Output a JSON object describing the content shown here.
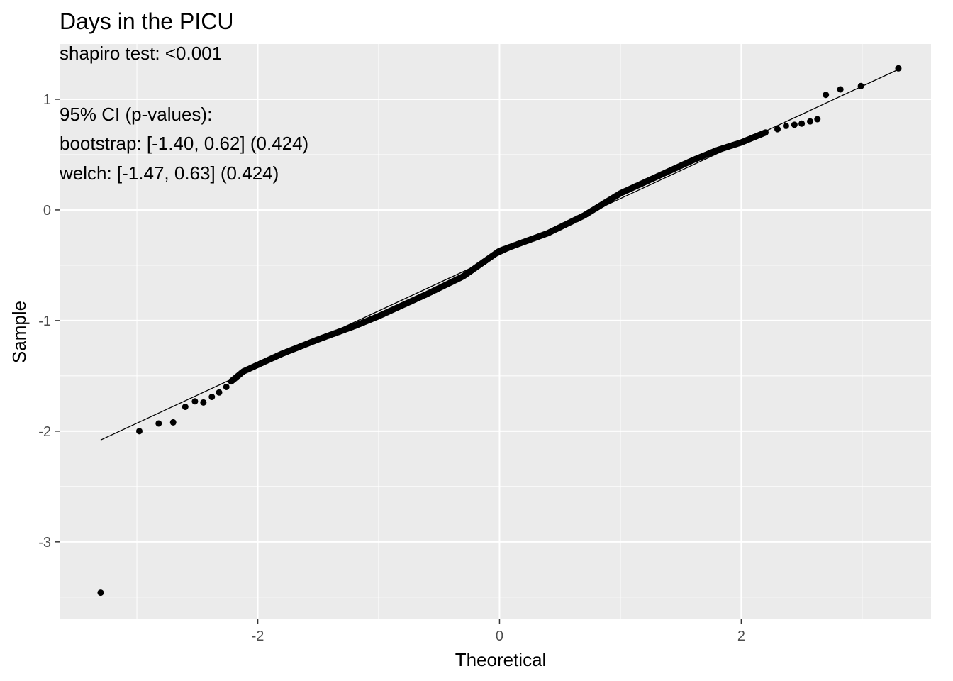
{
  "chart_data": {
    "type": "scatter",
    "title": "Days in the PICU",
    "annotations": [
      "shapiro test: <0.001",
      "",
      "95% CI (p-values):",
      "bootstrap: [-1.40, 0.62] (0.424)",
      "welch: [-1.47, 0.63] (0.424)"
    ],
    "xlabel": "Theoretical",
    "ylabel": "Sample",
    "xlim": [
      -3.64,
      3.57
    ],
    "ylim": [
      -3.7,
      1.5
    ],
    "x_ticks": [
      -2,
      0,
      2
    ],
    "x_tick_labels": [
      "-2",
      "0",
      "2"
    ],
    "y_ticks": [
      -3,
      -2,
      -1,
      0,
      1
    ],
    "y_tick_labels": [
      "-3",
      "-2",
      "-1",
      "0",
      "1"
    ],
    "grid": true,
    "reference_line": {
      "x": [
        -3.3,
        3.3
      ],
      "y": [
        -2.08,
        1.27
      ]
    },
    "outlier_points": [
      {
        "x": -3.3,
        "y": -3.46
      },
      {
        "x": -2.98,
        "y": -2.0
      },
      {
        "x": -2.82,
        "y": -1.93
      },
      {
        "x": -2.7,
        "y": -1.92
      },
      {
        "x": -2.6,
        "y": -1.78
      },
      {
        "x": -2.52,
        "y": -1.73
      },
      {
        "x": -2.45,
        "y": -1.74
      },
      {
        "x": -2.38,
        "y": -1.69
      },
      {
        "x": -2.32,
        "y": -1.65
      },
      {
        "x": -2.26,
        "y": -1.6
      },
      {
        "x": 2.3,
        "y": 0.73
      },
      {
        "x": 2.37,
        "y": 0.76
      },
      {
        "x": 2.44,
        "y": 0.77
      },
      {
        "x": 2.5,
        "y": 0.78
      },
      {
        "x": 2.57,
        "y": 0.8
      },
      {
        "x": 2.63,
        "y": 0.82
      },
      {
        "x": 2.7,
        "y": 1.04
      },
      {
        "x": 2.82,
        "y": 1.09
      },
      {
        "x": 2.99,
        "y": 1.12
      },
      {
        "x": 3.3,
        "y": 1.28
      }
    ],
    "quantile_path": [
      [
        -2.22,
        -1.55
      ],
      [
        -2.12,
        -1.46
      ],
      [
        -2.0,
        -1.4
      ],
      [
        -1.8,
        -1.3
      ],
      [
        -1.5,
        -1.17
      ],
      [
        -1.2,
        -1.05
      ],
      [
        -1.0,
        -0.96
      ],
      [
        -0.6,
        -0.76
      ],
      [
        -0.3,
        -0.6
      ],
      [
        0.0,
        -0.37
      ],
      [
        0.4,
        -0.21
      ],
      [
        0.7,
        -0.05
      ],
      [
        1.0,
        0.15
      ],
      [
        1.3,
        0.3
      ],
      [
        1.6,
        0.45
      ],
      [
        1.8,
        0.54
      ],
      [
        2.0,
        0.61
      ],
      [
        2.2,
        0.7
      ]
    ],
    "quantile_path_count": 440
  }
}
